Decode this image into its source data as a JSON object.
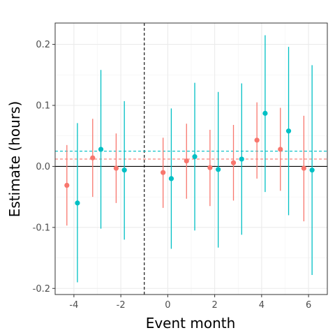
{
  "chart_data": {
    "type": "scatter",
    "subtype": "point-range",
    "xlabel": "Event month",
    "ylabel": "Estimate (hours)",
    "xlim": [
      -4.8,
      6.8
    ],
    "ylim": [
      -0.21,
      0.235
    ],
    "x_ticks": [
      -4,
      -2,
      0,
      2,
      4,
      6
    ],
    "x_tick_labels": [
      "-4",
      "-2",
      "0",
      "2",
      "4",
      "6"
    ],
    "y_ticks": [
      -0.2,
      -0.1,
      0.0,
      0.1,
      0.2
    ],
    "y_tick_labels": [
      "-0.2",
      "-0.1",
      "0.0",
      "0.1",
      "0.2"
    ],
    "grid": true,
    "legend": "none",
    "event_line_x": -1,
    "zero_line_y": 0,
    "series": [
      {
        "color": "#F8766D",
        "mean_line": 0.012,
        "points": [
          {
            "x": -4.3,
            "y": -0.031,
            "lo": -0.097,
            "hi": 0.035
          },
          {
            "x": -3.2,
            "y": 0.014,
            "lo": -0.05,
            "hi": 0.078
          },
          {
            "x": -2.2,
            "y": -0.003,
            "lo": -0.06,
            "hi": 0.054
          },
          {
            "x": -0.2,
            "y": -0.01,
            "lo": -0.068,
            "hi": 0.047
          },
          {
            "x": 0.8,
            "y": 0.009,
            "lo": -0.053,
            "hi": 0.07
          },
          {
            "x": 1.8,
            "y": -0.002,
            "lo": -0.065,
            "hi": 0.06
          },
          {
            "x": 2.8,
            "y": 0.006,
            "lo": -0.056,
            "hi": 0.068
          },
          {
            "x": 3.8,
            "y": 0.043,
            "lo": -0.02,
            "hi": 0.105
          },
          {
            "x": 4.8,
            "y": 0.028,
            "lo": -0.04,
            "hi": 0.096
          },
          {
            "x": 5.8,
            "y": -0.003,
            "lo": -0.09,
            "hi": 0.083
          }
        ]
      },
      {
        "color": "#00BFC4",
        "mean_line": 0.025,
        "points": [
          {
            "x": -3.85,
            "y": -0.06,
            "lo": -0.19,
            "hi": 0.071
          },
          {
            "x": -2.85,
            "y": 0.028,
            "lo": -0.102,
            "hi": 0.158
          },
          {
            "x": -1.85,
            "y": -0.006,
            "lo": -0.12,
            "hi": 0.107
          },
          {
            "x": 0.15,
            "y": -0.02,
            "lo": -0.135,
            "hi": 0.095
          },
          {
            "x": 1.15,
            "y": 0.016,
            "lo": -0.105,
            "hi": 0.137
          },
          {
            "x": 2.15,
            "y": -0.005,
            "lo": -0.133,
            "hi": 0.122
          },
          {
            "x": 3.15,
            "y": 0.012,
            "lo": -0.112,
            "hi": 0.136
          },
          {
            "x": 4.15,
            "y": 0.087,
            "lo": -0.042,
            "hi": 0.215
          },
          {
            "x": 5.15,
            "y": 0.058,
            "lo": -0.08,
            "hi": 0.196
          },
          {
            "x": 6.15,
            "y": -0.006,
            "lo": -0.178,
            "hi": 0.166
          }
        ]
      }
    ]
  }
}
